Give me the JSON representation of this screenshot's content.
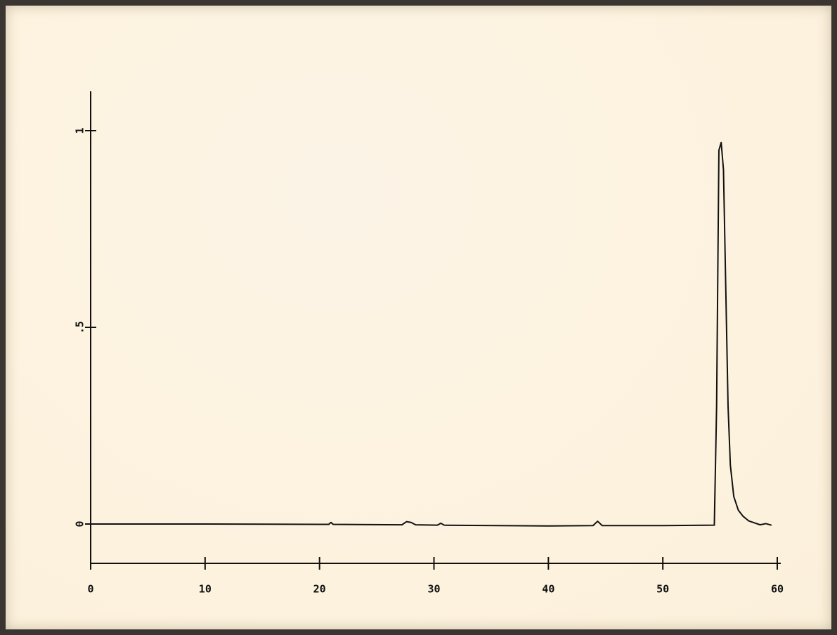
{
  "chart_data": {
    "type": "line",
    "x": [
      0,
      10,
      20,
      20.8,
      21,
      21.2,
      27.2,
      27.6,
      28,
      28.4,
      30.3,
      30.6,
      30.9,
      40,
      43.9,
      44.3,
      44.7,
      50,
      54.5,
      54.7,
      54.9,
      55.1,
      55.3,
      55.5,
      55.7,
      55.9,
      56.2,
      56.6,
      57,
      57.5,
      58,
      58.5,
      59,
      59.5
    ],
    "series": [
      {
        "color": "#111111",
        "values": [
          0,
          0,
          -0.001,
          -0.001,
          0.004,
          -0.001,
          -0.002,
          0.006,
          0.004,
          -0.002,
          -0.003,
          0.002,
          -0.003,
          -0.005,
          -0.004,
          0.007,
          -0.004,
          -0.004,
          -0.003,
          0.3,
          0.95,
          0.97,
          0.9,
          0.6,
          0.3,
          0.15,
          0.07,
          0.035,
          0.02,
          0.008,
          0.003,
          -0.002,
          0.001,
          -0.003
        ]
      }
    ],
    "xlim": [
      0,
      60
    ],
    "xticks": [
      0,
      10,
      20,
      30,
      40,
      50,
      60
    ],
    "ylim": [
      -0.1,
      1.1
    ],
    "yticks": [
      0,
      {
        "value": 0.5,
        "label": ".5"
      },
      1
    ]
  }
}
